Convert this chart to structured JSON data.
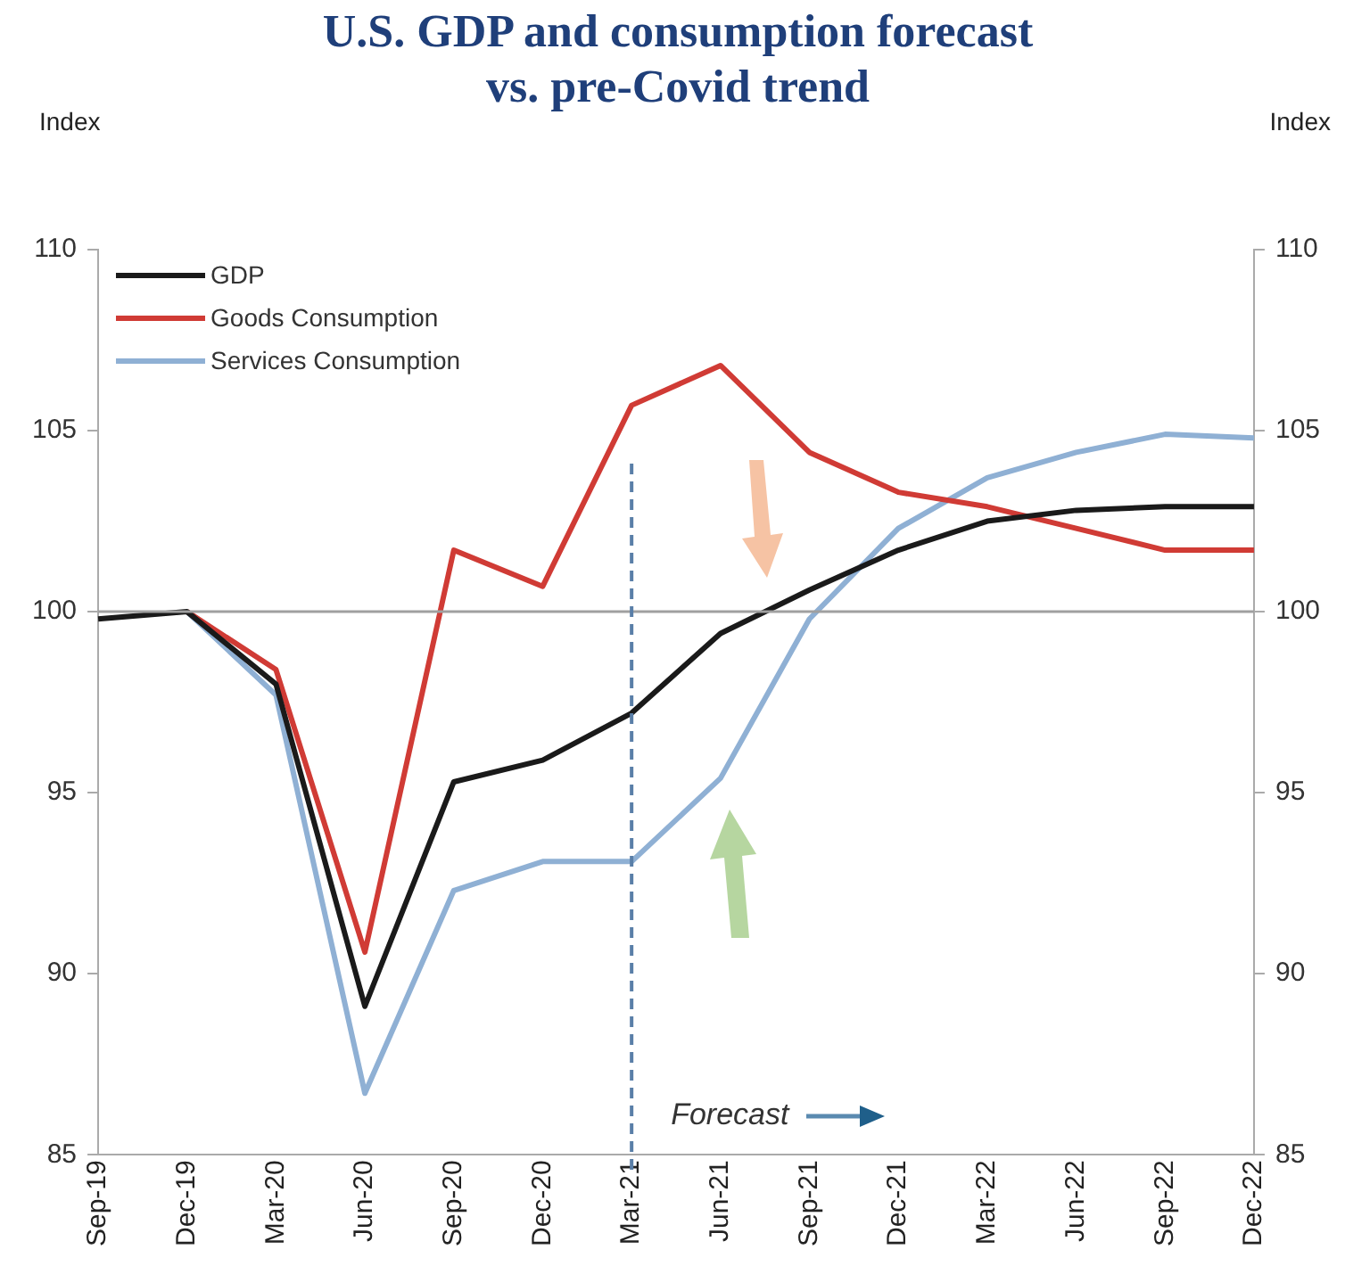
{
  "chart_data": {
    "type": "line",
    "title": "U.S. GDP and consumption forecast vs. pre-Covid trend",
    "ylabel": "Index",
    "y2label": "Index",
    "categories": [
      "Sep-19",
      "Dec-19",
      "Mar-20",
      "Jun-20",
      "Sep-20",
      "Dec-20",
      "Mar-21",
      "Jun-21",
      "Sep-21",
      "Dec-21",
      "Mar-22",
      "Jun-22",
      "Sep-22",
      "Dec-22"
    ],
    "series": [
      {
        "name": "GDP",
        "color": "#1a1a1a",
        "values": [
          99.8,
          100,
          98.0,
          89.1,
          95.3,
          95.9,
          97.2,
          99.4,
          100.6,
          101.7,
          102.5,
          102.8,
          102.9,
          102.9
        ]
      },
      {
        "name": "Goods Consumption",
        "color": "#d03b35",
        "values": [
          null,
          100,
          98.4,
          90.6,
          101.7,
          100.7,
          105.7,
          106.8,
          104.4,
          103.3,
          102.9,
          102.3,
          101.7,
          101.7
        ]
      },
      {
        "name": "Services Consumption",
        "color": "#8fb0d4",
        "values": [
          null,
          100,
          97.7,
          86.7,
          92.3,
          93.1,
          93.1,
          95.4,
          99.8,
          102.3,
          103.7,
          104.4,
          104.9,
          104.8
        ]
      }
    ],
    "ylim": [
      85,
      110
    ],
    "yticks": [
      85,
      90,
      95,
      100,
      105,
      110
    ],
    "y2lim": [
      85,
      110
    ],
    "y2ticks": [
      85,
      90,
      95,
      100,
      105,
      110
    ],
    "ref_lines": [
      {
        "axis": "y",
        "value": 100,
        "color": "#a0a0a0",
        "line_style": "solid"
      },
      {
        "axis": "x",
        "value": "Mar-21",
        "color": "#5a7fa8",
        "line_style": "dashed"
      }
    ],
    "annotations": [
      "Forecast"
    ],
    "grid": false,
    "legend": "top left",
    "marker": "none",
    "line_style": "solid"
  }
}
